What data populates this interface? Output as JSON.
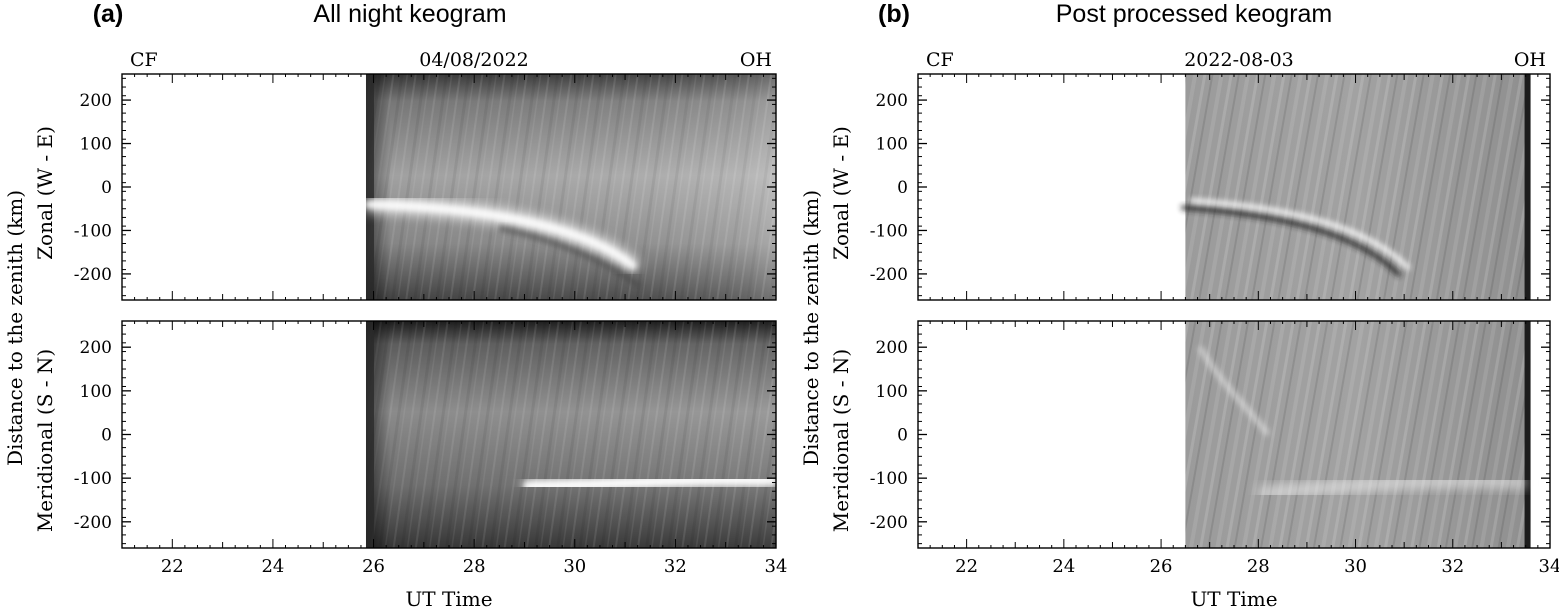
{
  "chart_data": [
    {
      "type": "heatmap",
      "panel_letter": "(a)",
      "title": "All night keogram",
      "header_left": "CF",
      "header_center": "04/08/2022",
      "header_right": "OH",
      "xlabel": "UT Time",
      "xlim": [
        21,
        34
      ],
      "xticks": [
        "22",
        "24",
        "26",
        "28",
        "30",
        "32",
        "34"
      ],
      "data_start_x": 25.85,
      "data_end_x": 34.0,
      "ylabel_outer": "Distance to the zenith (km)",
      "panels": [
        {
          "ylabel": "Zonal (W - E)",
          "ylim": [
            -260,
            260
          ],
          "yticks": [
            "200",
            "100",
            "0",
            "-100",
            "-200"
          ],
          "feature": "bright arc descending from -45 km near 26 UT to -230 km near 31.5 UT"
        },
        {
          "ylabel": "Meridional (S - N)",
          "ylim": [
            -260,
            260
          ],
          "yticks": [
            "200",
            "100",
            "0",
            "-100",
            "-200"
          ],
          "feature": "bright horizontal band near -110 km from 29 UT to 34 UT"
        }
      ],
      "colormap": "grayscale"
    },
    {
      "type": "heatmap",
      "panel_letter": "(b)",
      "title": "Post processed keogram",
      "header_left": "CF",
      "header_center": "2022-08-03",
      "header_right": "OH",
      "xlabel": "UT Time",
      "xlim": [
        21,
        34
      ],
      "xticks": [
        "22",
        "24",
        "26",
        "28",
        "30",
        "32",
        "34"
      ],
      "data_start_x": 26.5,
      "data_end_x": 33.6,
      "ylabel_outer": "Distance to the zenith (km)",
      "panels": [
        {
          "ylabel": "Zonal (W - E)",
          "ylim": [
            -260,
            260
          ],
          "yticks": [
            "200",
            "100",
            "0",
            "-100",
            "-200"
          ],
          "feature": "dark/bright gradient arc from -40 km near 26.5 UT to -200 km near 31 UT"
        },
        {
          "ylabel": "Meridional (S - N)",
          "ylim": [
            -260,
            260
          ],
          "yticks": [
            "200",
            "100",
            "0",
            "-100",
            "-200"
          ],
          "feature": "diffuse bright band near -110 km from 28 UT to 33.5 UT"
        }
      ],
      "colormap": "grayscale"
    }
  ]
}
